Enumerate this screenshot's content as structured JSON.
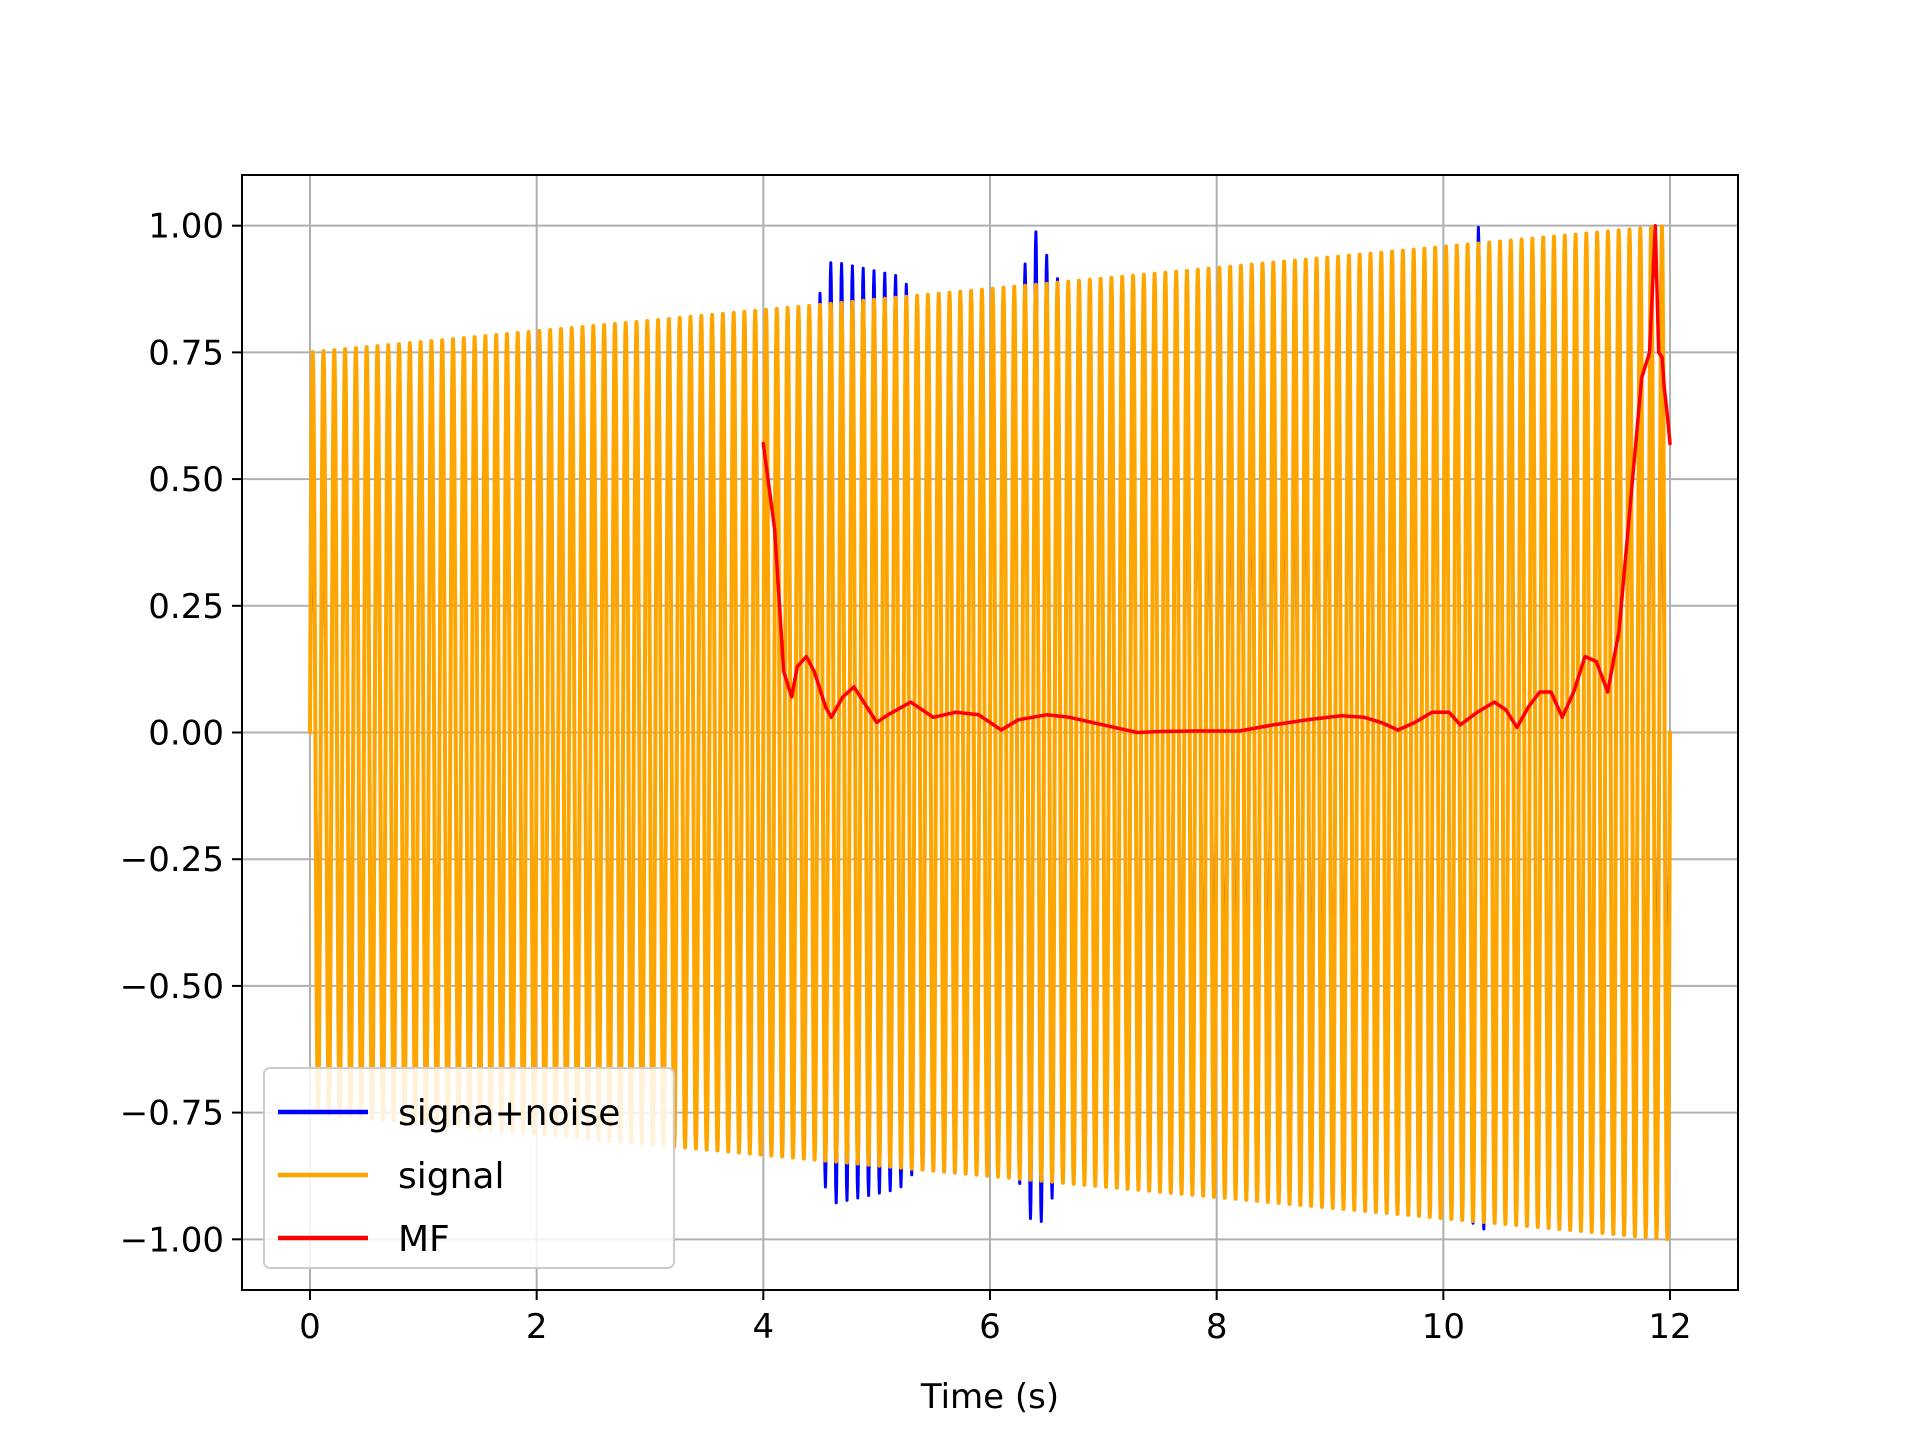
{
  "chart_data": {
    "type": "line",
    "title": "",
    "xlabel": "Time (s)",
    "ylabel": "",
    "xlim": [
      -0.6,
      12.6
    ],
    "ylim": [
      -1.1,
      1.1
    ],
    "xticks": [
      0,
      2,
      4,
      6,
      8,
      10,
      12
    ],
    "xtick_labels": [
      "0",
      "2",
      "4",
      "6",
      "8",
      "10",
      "12"
    ],
    "yticks": [
      1.0,
      0.75,
      0.5,
      0.25,
      0.0,
      -0.25,
      -0.5,
      -0.75,
      -1.0
    ],
    "ytick_labels": [
      "1.00",
      "0.75",
      "0.50",
      "0.25",
      "0.00",
      "−0.25",
      "−0.50",
      "−0.75",
      "−1.00"
    ],
    "grid": true,
    "legend_position": "bottom-left",
    "series": [
      {
        "name": "signa+noise",
        "color": "#0000ff",
        "kind": "oscillation",
        "t_start": 0,
        "t_end": 12,
        "cycles": 126,
        "envelope_t": [
          0,
          0.5,
          1,
          2,
          3,
          4,
          4.6,
          5.2,
          6,
          6.4,
          7,
          8,
          9,
          10,
          10.3,
          11,
          11.5,
          12
        ],
        "envelope_amp": [
          0.4,
          0.62,
          0.6,
          0.55,
          0.62,
          0.55,
          0.93,
          0.9,
          0.7,
          0.99,
          0.7,
          0.5,
          0.55,
          0.75,
          1.0,
          0.75,
          0.7,
          0.5
        ],
        "line_width": 3
      },
      {
        "name": "signal",
        "color": "#ffa500",
        "kind": "oscillation",
        "t_start": 0,
        "t_end": 12,
        "cycles": 126,
        "envelope_t": [
          0,
          12
        ],
        "envelope_amp": [
          0.75,
          1.0
        ],
        "line_width": 4
      },
      {
        "name": "MF",
        "color": "#ff0000",
        "kind": "line",
        "line_width": 3.5,
        "x": [
          4.0,
          4.1,
          4.18,
          4.25,
          4.3,
          4.38,
          4.45,
          4.55,
          4.6,
          4.7,
          4.8,
          4.9,
          5.0,
          5.1,
          5.3,
          5.5,
          5.7,
          5.9,
          6.1,
          6.25,
          6.5,
          6.7,
          7.0,
          7.3,
          7.5,
          7.8,
          8.2,
          8.5,
          8.8,
          9.1,
          9.3,
          9.45,
          9.6,
          9.75,
          9.9,
          10.05,
          10.15,
          10.3,
          10.45,
          10.55,
          10.65,
          10.75,
          10.85,
          10.95,
          11.05,
          11.15,
          11.25,
          11.35,
          11.45,
          11.55,
          11.65,
          11.75,
          11.82,
          11.87,
          11.9,
          11.93,
          11.95,
          11.98,
          12.0
        ],
        "y": [
          0.57,
          0.4,
          0.12,
          0.07,
          0.13,
          0.15,
          0.12,
          0.05,
          0.03,
          0.07,
          0.09,
          0.055,
          0.02,
          0.035,
          0.06,
          0.03,
          0.04,
          0.035,
          0.005,
          0.025,
          0.035,
          0.03,
          0.015,
          0.0,
          0.002,
          0.003,
          0.003,
          0.015,
          0.025,
          0.033,
          0.03,
          0.02,
          0.005,
          0.02,
          0.04,
          0.04,
          0.015,
          0.04,
          0.06,
          0.045,
          0.01,
          0.05,
          0.08,
          0.08,
          0.03,
          0.08,
          0.15,
          0.14,
          0.08,
          0.2,
          0.45,
          0.7,
          0.75,
          1.0,
          0.75,
          0.74,
          0.68,
          0.62,
          0.57
        ]
      }
    ]
  }
}
